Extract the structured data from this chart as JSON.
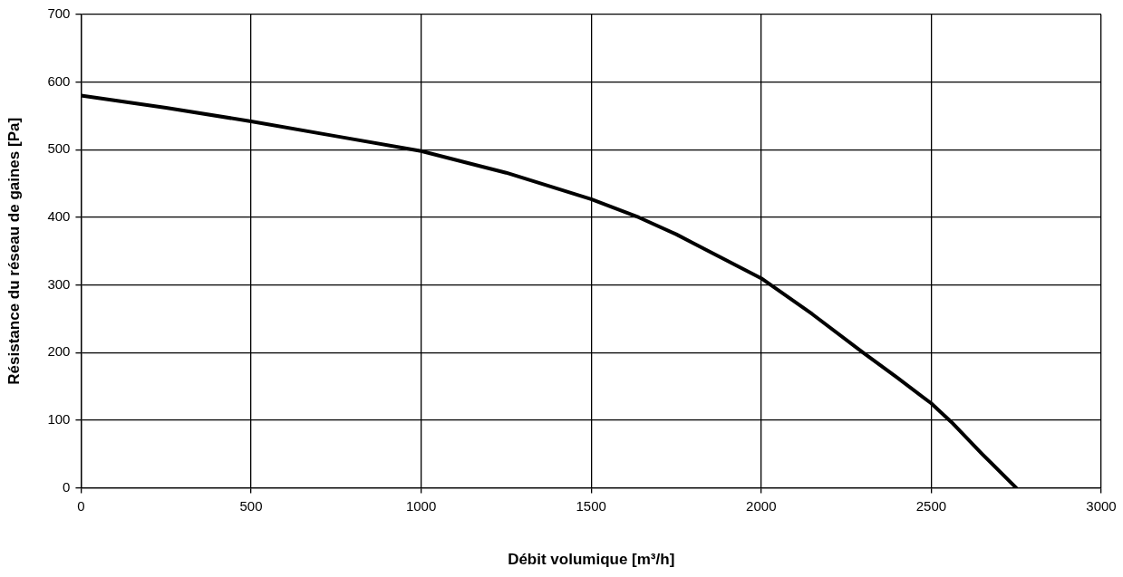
{
  "chart_data": {
    "type": "line",
    "xlabel": "Débit volumique [m³/h]",
    "ylabel": "Résistance du réseau de gaines [Pa]",
    "x": [
      0,
      250,
      500,
      750,
      1000,
      1250,
      1500,
      1640,
      1750,
      2000,
      2150,
      2300,
      2400,
      2500,
      2560,
      2650,
      2750
    ],
    "series": [
      {
        "color": "#000000",
        "values": [
          580,
          562,
          542,
          520,
          498,
          466,
          427,
          400,
          375,
          310,
          257,
          200,
          163,
          125,
          97,
          50,
          0
        ]
      }
    ],
    "xlim": [
      0,
      3000
    ],
    "xticks": [
      0,
      500,
      1000,
      1500,
      2000,
      2500,
      3000
    ],
    "ylim": [
      0,
      700
    ],
    "yticks": [
      0,
      100,
      200,
      300,
      400,
      500,
      600,
      700
    ],
    "grid": true,
    "legend": false,
    "marker": "none",
    "line_style": "solid"
  }
}
